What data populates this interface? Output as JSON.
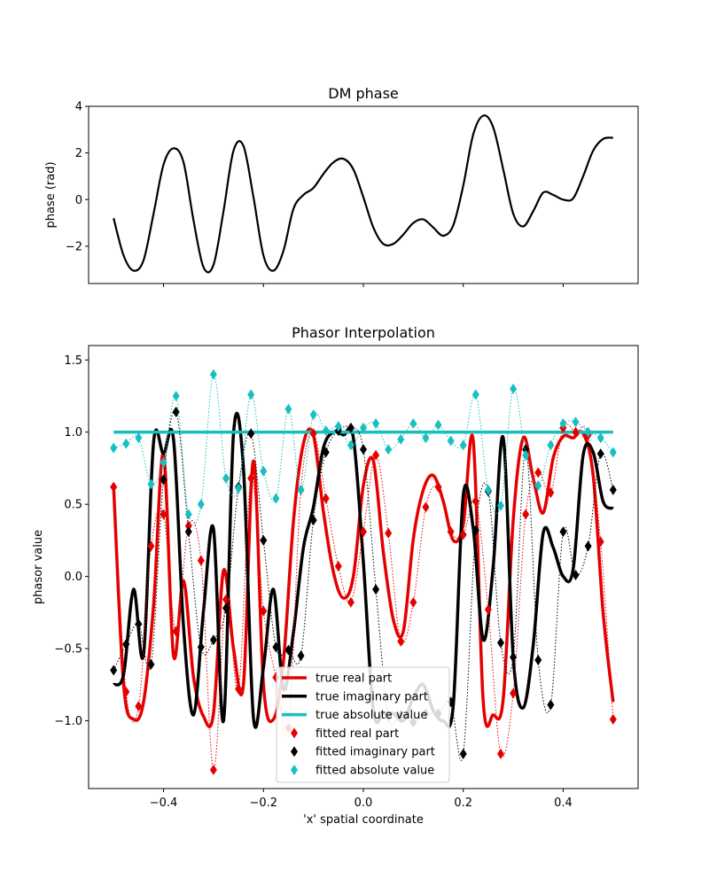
{
  "colors": {
    "real": "#e50000",
    "imag": "#000000",
    "abs": "#19bfbf"
  },
  "chart_data": [
    {
      "type": "line",
      "title": "DM phase",
      "xlabel": "",
      "ylabel": "phase (rad)",
      "xlim": [
        -0.55,
        0.55
      ],
      "ylim": [
        -3.6,
        4.0
      ],
      "yticks": [
        4,
        2,
        0,
        -2
      ],
      "ytick_labels": [
        "4",
        "2",
        "0",
        "−2"
      ],
      "xticks": [
        -0.4,
        -0.2,
        0.0,
        0.2,
        0.4
      ],
      "series": [
        {
          "name": "phase",
          "x": [
            -0.5,
            -0.48,
            -0.46,
            -0.44,
            -0.42,
            -0.4,
            -0.38,
            -0.36,
            -0.34,
            -0.32,
            -0.3,
            -0.28,
            -0.26,
            -0.24,
            -0.22,
            -0.2,
            -0.18,
            -0.16,
            -0.14,
            -0.12,
            -0.1,
            -0.08,
            -0.06,
            -0.04,
            -0.02,
            0.0,
            0.02,
            0.04,
            0.06,
            0.08,
            0.1,
            0.12,
            0.14,
            0.16,
            0.18,
            0.2,
            0.22,
            0.24,
            0.26,
            0.28,
            0.3,
            0.32,
            0.34,
            0.36,
            0.38,
            0.4,
            0.42,
            0.44,
            0.46,
            0.48,
            0.5
          ],
          "y": [
            -0.8,
            -2.4,
            -3.05,
            -2.6,
            -0.6,
            1.5,
            2.2,
            1.6,
            -0.9,
            -2.9,
            -2.8,
            -0.5,
            2.1,
            2.3,
            0.1,
            -2.4,
            -3.05,
            -2.2,
            -0.4,
            0.2,
            0.5,
            1.1,
            1.6,
            1.75,
            1.3,
            0.1,
            -1.2,
            -1.9,
            -1.9,
            -1.5,
            -1.0,
            -0.85,
            -1.2,
            -1.55,
            -1.1,
            0.6,
            2.8,
            3.6,
            3.1,
            1.3,
            -0.6,
            -1.15,
            -0.5,
            0.3,
            0.2,
            0.0,
            0.05,
            1.0,
            2.1,
            2.6,
            2.65
          ]
        }
      ]
    },
    {
      "type": "line",
      "title": "Phasor Interpolation",
      "xlabel": "'x' spatial coordinate",
      "ylabel": "phasor value",
      "xlim": [
        -0.55,
        0.55
      ],
      "ylim": [
        -1.47,
        1.6
      ],
      "yticks": [
        1.5,
        1.0,
        0.5,
        0.0,
        -0.5,
        -1.0
      ],
      "ytick_labels": [
        "1.5",
        "1.0",
        "0.5",
        "0.0",
        "−0.5",
        "−1.0"
      ],
      "xticks": [
        -0.4,
        -0.2,
        0.0,
        0.2,
        0.4
      ],
      "xtick_labels": [
        "−0.4",
        "−0.2",
        "0.0",
        "0.2",
        "0.4"
      ],
      "series": [
        {
          "name": "true real part",
          "kind": "line",
          "color": "#e50000",
          "x": [
            -0.5,
            -0.48,
            -0.46,
            -0.44,
            -0.42,
            -0.4,
            -0.38,
            -0.36,
            -0.34,
            -0.32,
            -0.3,
            -0.28,
            -0.26,
            -0.24,
            -0.22,
            -0.2,
            -0.18,
            -0.16,
            -0.14,
            -0.12,
            -0.1,
            -0.08,
            -0.06,
            -0.04,
            -0.02,
            0.0,
            0.02,
            0.04,
            0.06,
            0.08,
            0.1,
            0.12,
            0.14,
            0.16,
            0.18,
            0.2,
            0.22,
            0.24,
            0.26,
            0.28,
            0.3,
            0.32,
            0.34,
            0.36,
            0.38,
            0.4,
            0.42,
            0.44,
            0.46,
            0.48,
            0.5
          ],
          "y": [
            0.62,
            -0.75,
            -0.99,
            -0.87,
            -0.2,
            0.85,
            -0.55,
            -0.03,
            -0.7,
            -0.97,
            -0.95,
            0.04,
            -0.5,
            -0.75,
            0.8,
            -0.75,
            -0.99,
            -0.59,
            0.38,
            0.92,
            0.98,
            0.45,
            0.03,
            -0.15,
            -0.0,
            0.63,
            0.8,
            0.17,
            -0.3,
            -0.38,
            0.26,
            0.6,
            0.7,
            0.52,
            0.25,
            0.36,
            0.94,
            -0.87,
            -0.96,
            -0.85,
            0.39,
            0.96,
            0.68,
            0.44,
            0.82,
            0.97,
            0.96,
            0.99,
            0.7,
            -0.25,
            -0.87
          ]
        },
        {
          "name": "true imaginary part",
          "kind": "line",
          "color": "#000000",
          "x": [
            -0.5,
            -0.48,
            -0.46,
            -0.44,
            -0.42,
            -0.4,
            -0.38,
            -0.36,
            -0.34,
            -0.32,
            -0.3,
            -0.28,
            -0.26,
            -0.24,
            -0.22,
            -0.2,
            -0.18,
            -0.16,
            -0.14,
            -0.12,
            -0.1,
            -0.08,
            -0.06,
            -0.04,
            -0.02,
            0.0,
            0.02,
            0.04,
            0.06,
            0.08,
            0.1,
            0.12,
            0.14,
            0.16,
            0.18,
            0.2,
            0.22,
            0.24,
            0.26,
            0.28,
            0.3,
            0.32,
            0.34,
            0.36,
            0.38,
            0.4,
            0.42,
            0.44,
            0.46,
            0.48,
            0.5
          ],
          "y": [
            -0.75,
            -0.68,
            -0.09,
            -0.54,
            0.93,
            0.85,
            0.95,
            -0.35,
            -0.96,
            -0.24,
            0.33,
            -1.0,
            0.99,
            0.75,
            -0.98,
            -0.63,
            -0.09,
            -0.78,
            -0.39,
            0.2,
            0.48,
            0.89,
            1.0,
            0.98,
            0.96,
            0.1,
            -0.93,
            -0.95,
            -0.95,
            -1.0,
            -0.84,
            -0.75,
            -0.93,
            -1.0,
            -0.89,
            0.56,
            0.33,
            -0.44,
            0.07,
            0.96,
            -0.56,
            -0.91,
            -0.48,
            0.3,
            0.2,
            0.0,
            0.05,
            0.84,
            0.86,
            0.52,
            0.47
          ]
        },
        {
          "name": "true absolute value",
          "kind": "line",
          "color": "#19bfbf",
          "x": [
            -0.5,
            0.5
          ],
          "y": [
            1.0,
            1.0
          ]
        },
        {
          "name": "fitted real part",
          "kind": "marker",
          "color": "#e50000",
          "x": [
            -0.5,
            -0.475,
            -0.45,
            -0.425,
            -0.4,
            -0.375,
            -0.35,
            -0.325,
            -0.3,
            -0.275,
            -0.25,
            -0.225,
            -0.2,
            -0.175,
            -0.15,
            -0.125,
            -0.1,
            -0.075,
            -0.05,
            -0.025,
            0.0,
            0.025,
            0.05,
            0.075,
            0.1,
            0.125,
            0.15,
            0.175,
            0.2,
            0.225,
            0.25,
            0.275,
            0.3,
            0.325,
            0.35,
            0.375,
            0.4,
            0.425,
            0.45,
            0.475,
            0.5
          ],
          "y": [
            0.62,
            -0.8,
            -0.9,
            0.21,
            0.43,
            -0.38,
            0.35,
            0.11,
            -1.34,
            -0.16,
            -0.78,
            0.68,
            -0.24,
            -0.7,
            -1.05,
            0.6,
            0.99,
            0.54,
            0.07,
            -0.18,
            0.31,
            0.84,
            0.3,
            -0.45,
            -0.18,
            0.48,
            0.62,
            0.31,
            0.29,
            0.52,
            -0.23,
            -1.23,
            -0.81,
            0.43,
            0.72,
            0.58,
            1.03,
            1.0,
            0.98,
            0.24,
            -0.99
          ]
        },
        {
          "name": "fitted imaginary part",
          "kind": "marker",
          "color": "#000000",
          "x": [
            -0.5,
            -0.475,
            -0.45,
            -0.425,
            -0.4,
            -0.375,
            -0.35,
            -0.325,
            -0.3,
            -0.275,
            -0.25,
            -0.225,
            -0.2,
            -0.175,
            -0.15,
            -0.125,
            -0.1,
            -0.075,
            -0.05,
            -0.025,
            0.0,
            0.025,
            0.05,
            0.075,
            0.1,
            0.125,
            0.15,
            0.175,
            0.2,
            0.225,
            0.25,
            0.275,
            0.3,
            0.325,
            0.35,
            0.375,
            0.4,
            0.425,
            0.45,
            0.475,
            0.5
          ],
          "y": [
            -0.65,
            -0.47,
            -0.33,
            -0.61,
            0.67,
            1.14,
            0.31,
            -0.49,
            -0.44,
            -0.22,
            0.62,
            0.99,
            0.25,
            -0.49,
            -0.51,
            -0.55,
            0.39,
            0.86,
            1.01,
            1.03,
            0.88,
            -0.09,
            -0.97,
            -0.96,
            -1.01,
            -0.95,
            -0.95,
            -0.87,
            -1.23,
            0.32,
            0.59,
            -0.46,
            -0.56,
            0.88,
            -0.58,
            -0.89,
            0.31,
            0.01,
            0.21,
            0.85,
            0.6
          ]
        },
        {
          "name": "fitted absolute value",
          "kind": "marker",
          "color": "#19bfbf",
          "x": [
            -0.5,
            -0.475,
            -0.45,
            -0.425,
            -0.4,
            -0.375,
            -0.35,
            -0.325,
            -0.3,
            -0.275,
            -0.25,
            -0.225,
            -0.2,
            -0.175,
            -0.15,
            -0.125,
            -0.1,
            -0.075,
            -0.05,
            -0.025,
            0.0,
            0.025,
            0.05,
            0.075,
            0.1,
            0.125,
            0.15,
            0.175,
            0.2,
            0.225,
            0.25,
            0.275,
            0.3,
            0.325,
            0.35,
            0.375,
            0.4,
            0.425,
            0.45,
            0.475,
            0.5
          ],
          "y": [
            0.89,
            0.92,
            0.96,
            0.64,
            0.79,
            1.25,
            0.43,
            0.5,
            1.4,
            0.68,
            0.61,
            1.26,
            0.73,
            0.54,
            1.16,
            0.6,
            1.12,
            1.01,
            1.04,
            0.91,
            1.03,
            1.06,
            0.88,
            0.95,
            1.06,
            0.96,
            1.05,
            0.94,
            0.91,
            1.26,
            0.6,
            0.49,
            1.3,
            0.84,
            0.63,
            0.91,
            1.06,
            1.07,
            1.0,
            0.96,
            0.86
          ]
        }
      ],
      "legend": {
        "placement": "lower-center",
        "entries": [
          "true real part",
          "true imaginary part",
          "true absolute value",
          "fitted real part",
          "fitted imaginary part",
          "fitted absolute value"
        ]
      }
    }
  ]
}
